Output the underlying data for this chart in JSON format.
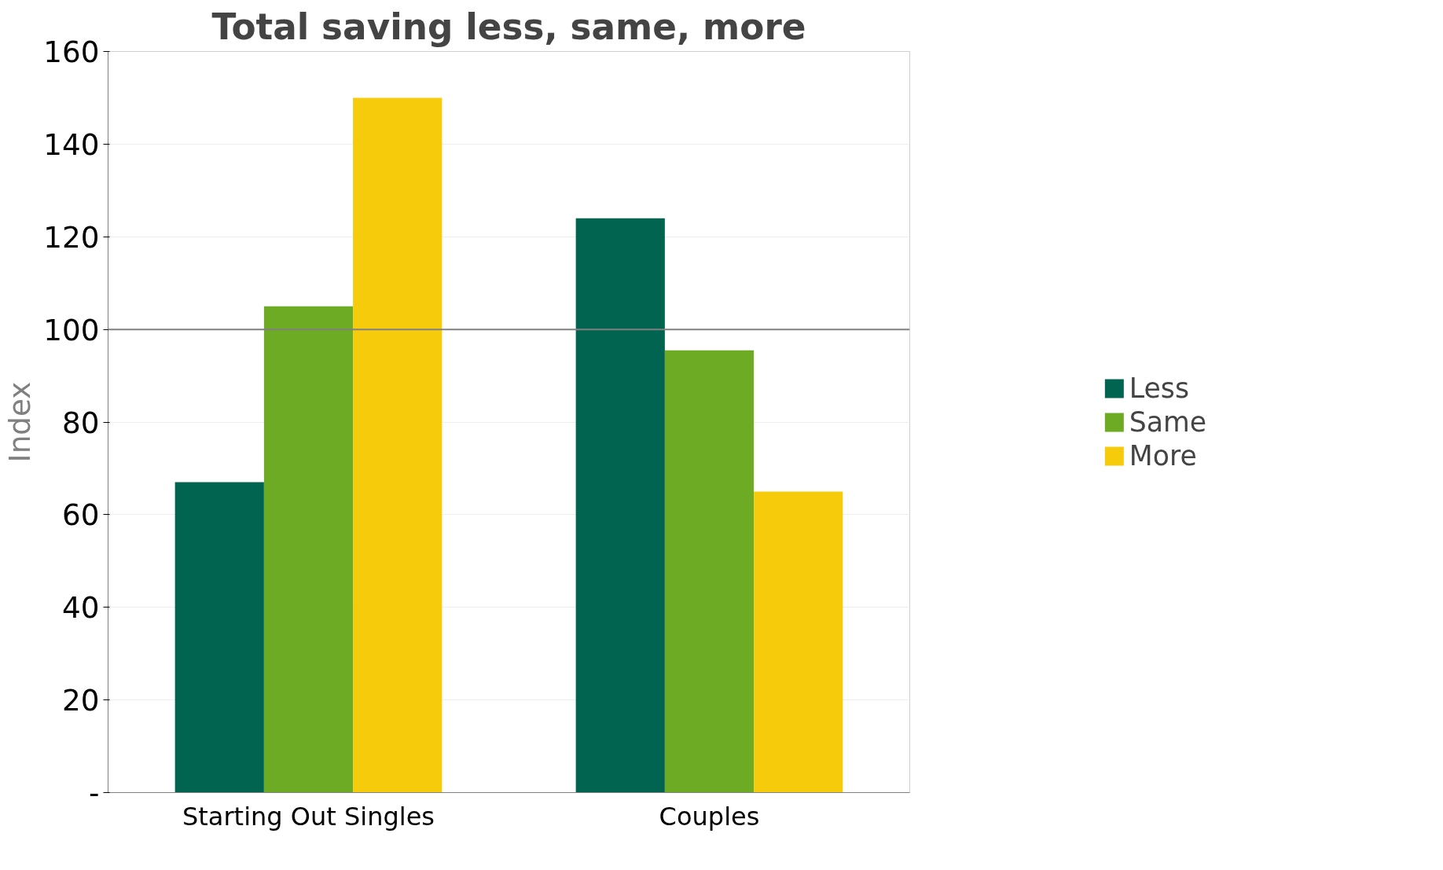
{
  "chart_data": {
    "type": "bar",
    "title": "Total saving less, same, more",
    "ylabel": "Index",
    "categories": [
      "Starting Out Singles",
      "Couples"
    ],
    "series": [
      {
        "name": "Less",
        "color": "#006450",
        "values": [
          67,
          124
        ]
      },
      {
        "name": "Same",
        "color": "#6eab24",
        "values": [
          105,
          95.5
        ]
      },
      {
        "name": "More",
        "color": "#f5cb0c",
        "values": [
          150,
          65
        ]
      }
    ],
    "ylim": [
      0,
      160
    ],
    "yticks": [
      {
        "value": 0,
        "label": "-"
      },
      20,
      40,
      60,
      80,
      100,
      120,
      140,
      160
    ],
    "ref_lines": [
      {
        "axis": "y",
        "value": 100,
        "color": "#808080"
      }
    ],
    "grid": "y",
    "legend": "right"
  }
}
